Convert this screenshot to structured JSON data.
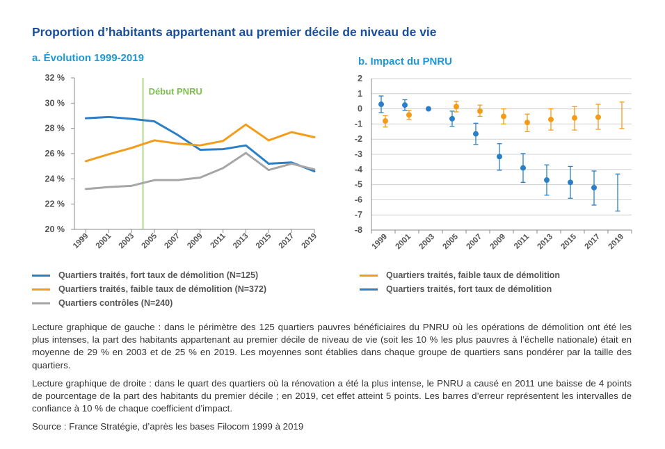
{
  "title": "Proportion d’habitants appartenant au premier décile de niveau de vie",
  "colors": {
    "blue": "#2a7fc7",
    "orange": "#f39c1a",
    "gray": "#a6a6a6",
    "green": "#7cc04b",
    "axis": "#888888",
    "grid": "#d0d0d0"
  },
  "chart_data": [
    {
      "type": "line",
      "title": "a. Évolution 1999-2019",
      "x": [
        1999,
        2001,
        2003,
        2005,
        2007,
        2009,
        2011,
        2013,
        2015,
        2017,
        2019
      ],
      "x_tick_labels": [
        "1999",
        "2001",
        "2003",
        "2005",
        "2007",
        "2009",
        "2011",
        "2013",
        "2015",
        "2017",
        "2019"
      ],
      "y_ticks": [
        20,
        22,
        24,
        26,
        28,
        30,
        32
      ],
      "y_tick_labels": [
        "20 %",
        "22 %",
        "24 %",
        "26 %",
        "28 %",
        "30 %",
        "32 %"
      ],
      "ylim": [
        20,
        32
      ],
      "xlim": [
        1998,
        2019
      ],
      "annotation": {
        "label": "Début PNRU",
        "x": 2004
      },
      "series": [
        {
          "name": "Quartiers traités, fort taux de démolition (N=125)",
          "color": "#2a7fc7",
          "values": [
            28.8,
            28.9,
            28.75,
            28.55,
            27.5,
            26.3,
            26.35,
            26.65,
            25.2,
            25.3,
            24.6
          ]
        },
        {
          "name": "Quartiers traités, faible taux de démolition (N=372)",
          "color": "#f39c1a",
          "values": [
            25.4,
            25.95,
            26.45,
            27.05,
            26.8,
            26.65,
            27.0,
            28.3,
            27.05,
            27.7,
            27.3
          ]
        },
        {
          "name": "Quartiers contrôles (N=240)",
          "color": "#a6a6a6",
          "values": [
            23.2,
            23.35,
            23.45,
            23.9,
            23.9,
            24.1,
            24.85,
            26.05,
            24.7,
            25.2,
            24.75
          ]
        }
      ]
    },
    {
      "type": "scatter",
      "title": "b. Impact du PNRU",
      "x": [
        1999,
        2001,
        2003,
        2005,
        2007,
        2009,
        2011,
        2013,
        2015,
        2017,
        2019
      ],
      "x_tick_labels": [
        "1999",
        "2001",
        "2003",
        "2005",
        "2007",
        "2009",
        "2011",
        "2013",
        "2015",
        "2017",
        "2019"
      ],
      "y_ticks": [
        -8,
        -7,
        -6,
        -5,
        -4,
        -3,
        -2,
        -1,
        0,
        1,
        2
      ],
      "y_tick_labels": [
        "-8",
        "-7",
        "-6",
        "-5",
        "-4",
        "-3",
        "-2",
        "-1",
        "0",
        "1",
        "2"
      ],
      "ylim": [
        -8,
        2
      ],
      "grid": true,
      "series": [
        {
          "name": "Quartiers traités, faible taux de démolition",
          "color": "#f39c1a",
          "values": [
            -0.8,
            -0.4,
            null,
            0.15,
            -0.15,
            -0.5,
            -0.9,
            -0.7,
            -0.6,
            -0.55,
            null
          ],
          "ci": [
            [
              -1.2,
              -0.45
            ],
            [
              -0.7,
              -0.1
            ],
            null,
            [
              -0.2,
              0.5
            ],
            [
              -0.5,
              0.25
            ],
            [
              -1.0,
              0.0
            ],
            [
              -1.5,
              -0.35
            ],
            [
              -1.4,
              0.0
            ],
            [
              -1.4,
              0.15
            ],
            [
              -1.35,
              0.3
            ],
            [
              -1.3,
              0.45
            ]
          ]
        },
        {
          "name": "Quartiers traités, fort taux de démolition",
          "color": "#2a7fc7",
          "values": [
            0.3,
            0.25,
            0.0,
            -0.65,
            -1.65,
            -3.15,
            -3.9,
            -4.7,
            -4.85,
            -5.2,
            null
          ],
          "ci": [
            [
              -0.25,
              0.85
            ],
            [
              -0.1,
              0.6
            ],
            null,
            [
              -1.15,
              -0.15
            ],
            [
              -2.35,
              -0.95
            ],
            [
              -4.05,
              -2.3
            ],
            [
              -4.85,
              -2.95
            ],
            [
              -5.7,
              -3.7
            ],
            [
              -5.9,
              -3.8
            ],
            [
              -6.35,
              -4.1
            ],
            [
              -6.75,
              -4.3
            ]
          ]
        }
      ]
    }
  ],
  "legend_a": [
    {
      "label": "Quartiers traités, fort taux de démolition (N=125)",
      "color": "#2a7fc7"
    },
    {
      "label": "Quartiers traités, faible taux de démolition (N=372)",
      "color": "#f39c1a"
    },
    {
      "label": "Quartiers contrôles (N=240)",
      "color": "#a6a6a6"
    }
  ],
  "legend_b": [
    {
      "label": "Quartiers traités, faible taux de démolition",
      "color": "#f39c1a"
    },
    {
      "label": "Quartiers traités, fort taux de démolition",
      "color": "#2a7fc7"
    }
  ],
  "notes": {
    "left": "Lecture graphique de gauche : dans le périmètre des 125 quartiers pauvres bénéficiaires du PNRU où les opérations de démolition ont été les plus intenses, la part des habitants appartenant au premier décile de niveau de vie (soit les 10 % les plus pauvres à l’échelle nationale) était en moyenne de 29 % en 2003 et de 25 % en 2019. Les moyennes sont établies dans chaque groupe de quartiers sans pondérer par la taille des quartiers.",
    "right": "Lecture graphique de droite : dans le quart des quartiers où la rénovation a été la plus intense,  le PNRU a causé en 2011 une baisse de 4 points de pourcentage de la part des habitants du premier décile ; en 2019, cet effet atteint 5 points. Les barres d’erreur représentent les intervalles de confiance à 10 % de chaque coefficient d’impact.",
    "source": "Source : France Stratégie, d’après les bases Filocom 1999 à 2019"
  }
}
